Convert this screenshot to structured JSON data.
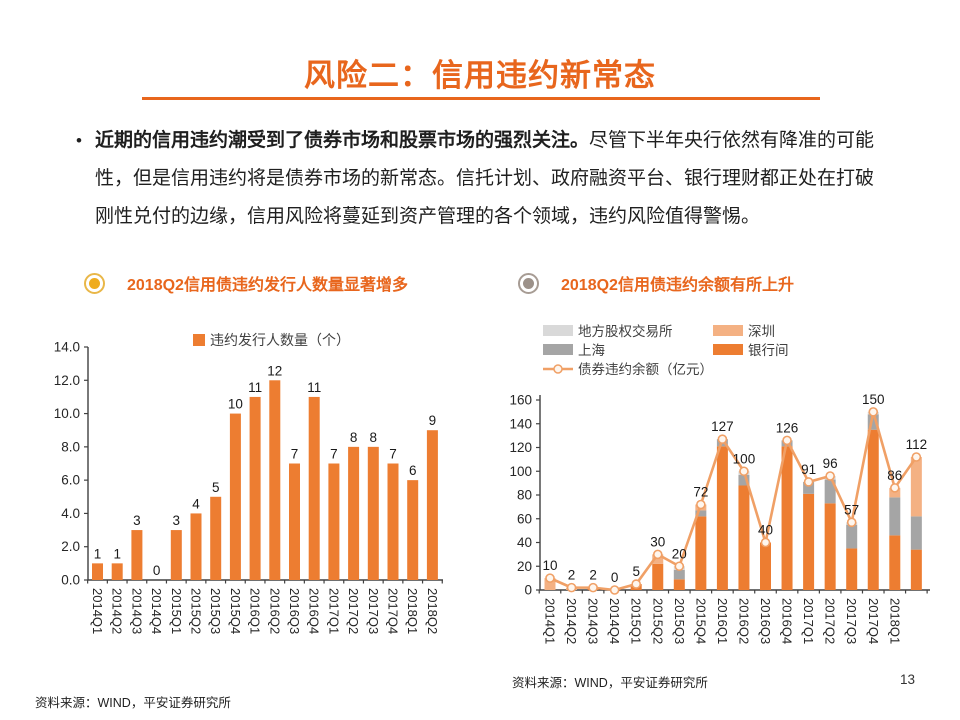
{
  "slide": {
    "title": "风险二：信用违约新常态",
    "bullet": "•",
    "paragraph_bold": "近期的信用违约潮受到了债券市场和股票市场的强烈关注。",
    "paragraph_rest": "尽管下半年央行依然有降准的可能性，但是信用违约将是债券市场的新常态。信托计划、政府融资平台、银行理财都正处在打破刚性兑付的边缘，信用风险将蔓延到资产管理的各个领域，违约风险值得警惕。",
    "source_left": "资料来源：WIND，平安证券研究所",
    "source_right": "资料来源：WIND，平安证券研究所",
    "page_number": "13"
  },
  "colors": {
    "accent_orange": "#E8661D",
    "bar_orange": "#ED7D31",
    "light_orange": "#F4B183",
    "grey": "#A5A5A5",
    "light_grey": "#D9D9D9",
    "line_orange": "#F0A066",
    "marker_fill": "#FEF6EE",
    "axis": "#404040",
    "text_dark": "#1A1A1A",
    "legend_text": "#404040",
    "left_bullet_ring": "#E9B748",
    "left_bullet_dot": "#EFAC1E",
    "right_bullet_ring": "#A79C94",
    "right_bullet_dot": "#9C9189"
  },
  "chart_data": [
    {
      "type": "bar",
      "title": "2018Q2信用债违约发行人数量显著增多",
      "legend": "违约发行人数量（个）",
      "categories": [
        "2014Q1",
        "2014Q2",
        "2014Q3",
        "2014Q4",
        "2015Q1",
        "2015Q2",
        "2015Q3",
        "2015Q4",
        "2016Q1",
        "2016Q2",
        "2016Q3",
        "2016Q4",
        "2017Q1",
        "2017Q2",
        "2017Q3",
        "2017Q4",
        "2018Q1",
        "2018Q2"
      ],
      "values": [
        1,
        1,
        3,
        0,
        3,
        4,
        5,
        10,
        11,
        12,
        7,
        11,
        7,
        8,
        8,
        7,
        6,
        9
      ],
      "xlabel": "",
      "ylabel": "",
      "ylim": [
        0,
        14
      ],
      "ytick_step": 2,
      "ytick_decimals": 1,
      "grid": false,
      "legend_position": "top"
    },
    {
      "type": "stacked-bar-line",
      "title": "2018Q2信用债违约余额有所上升",
      "categories": [
        "2014Q1",
        "2014Q2",
        "2014Q3",
        "2014Q4",
        "2015Q1",
        "2015Q2",
        "2015Q3",
        "2015Q4",
        "2016Q1",
        "2016Q2",
        "2016Q3",
        "2016Q4",
        "2017Q1",
        "2017Q2",
        "2017Q3",
        "2017Q4",
        "2018Q1",
        ""
      ],
      "series": [
        {
          "name": "银行间",
          "color": "#ED7D31",
          "values": [
            0,
            0,
            2,
            0,
            5,
            22,
            9,
            62,
            121,
            88,
            40,
            121,
            81,
            73,
            35,
            135,
            46,
            34
          ]
        },
        {
          "name": "上海",
          "color": "#A5A5A5",
          "values": [
            0,
            0,
            0,
            0,
            0,
            0,
            8,
            5,
            6,
            9,
            0,
            5,
            10,
            20,
            20,
            13,
            32,
            28
          ]
        },
        {
          "name": "地方股权交易所",
          "color": "#D9D9D9",
          "values": [
            0,
            0,
            0,
            0,
            0,
            0,
            3,
            0,
            0,
            3,
            0,
            0,
            0,
            3,
            2,
            2,
            0,
            0
          ]
        },
        {
          "name": "深圳",
          "color": "#F4B183",
          "values": [
            10,
            2,
            0,
            0,
            0,
            8,
            0,
            5,
            0,
            0,
            0,
            0,
            0,
            0,
            0,
            0,
            8,
            50
          ]
        }
      ],
      "line": {
        "name": "债券违约余额（亿元）",
        "color": "#F0A066",
        "values": [
          10,
          2,
          2,
          0,
          5,
          30,
          20,
          72,
          127,
          100,
          40,
          126,
          91,
          96,
          57,
          150,
          86,
          112
        ]
      },
      "legend_columns": [
        [
          "地方股权交易所",
          "上海",
          "@line"
        ],
        [
          "深圳",
          "银行间"
        ]
      ],
      "xlabel": "",
      "ylabel": "",
      "ylim": [
        0,
        160
      ],
      "ytick_step": 20,
      "ytick_decimals": 0,
      "grid": false,
      "legend_position": "top"
    }
  ]
}
